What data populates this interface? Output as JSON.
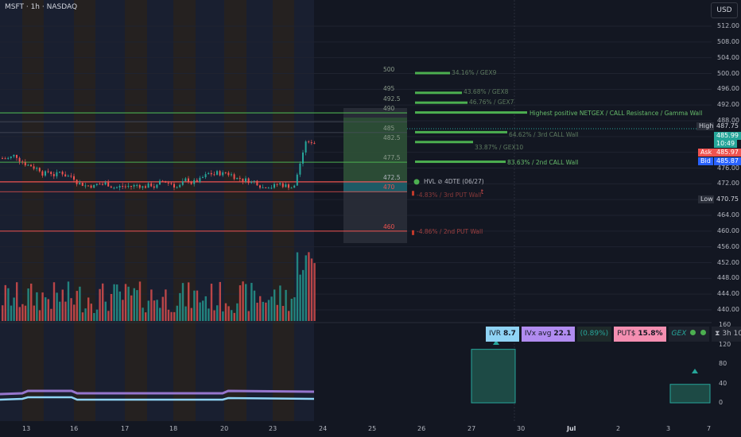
{
  "header": {
    "symbol_line": "MSFT · 1h · NASDAQ"
  },
  "currency_button": "USD",
  "price_axis": {
    "ticks": [
      "512.00",
      "508.00",
      "504.00",
      "500.00",
      "496.00",
      "492.00",
      "488.00",
      "484.00",
      "480.00",
      "476.00",
      "472.00",
      "468.00",
      "464.00",
      "460.00",
      "456.00",
      "452.00",
      "448.00",
      "444.00",
      "440.00"
    ]
  },
  "price_labels": {
    "high_tag": "High",
    "high_value": "487.75",
    "last_value": "485.99",
    "last_countdown": "10:49",
    "ask_tag": "Ask",
    "ask_value": "485.97",
    "bid_tag": "Bid",
    "bid_value": "485.87",
    "low_tag": "Low",
    "low_value": "470.75"
  },
  "indicator_axis": {
    "ticks": [
      "160",
      "120",
      "80",
      "40",
      "0"
    ]
  },
  "time_axis": {
    "ticks": [
      "13",
      "16",
      "17",
      "18",
      "20",
      "23",
      "24",
      "25",
      "26",
      "27",
      "30",
      "Jul",
      "2",
      "3",
      "7"
    ]
  },
  "strikes": [
    "500",
    "495",
    "492.5",
    "490",
    "485",
    "482.5",
    "477.5",
    "472.5",
    "470",
    "460"
  ],
  "gex_labels": [
    {
      "text": "34.16% / GEX9"
    },
    {
      "text": "43.68% / GEX8"
    },
    {
      "text": "46.76% / GEX7"
    },
    {
      "text": "Highest positive NETGEX / CALL Resistance / Gamma Wall"
    },
    {
      "text": "64.62% / 3rd CALL Wall"
    },
    {
      "text": "33.87% / GEX10"
    },
    {
      "text": "83.63% / 2nd CALL Wall"
    },
    {
      "text": "HVL ⊘ 4DTE (06/27)"
    },
    {
      "text": "-4.83% / 3rd PUT Wall"
    },
    {
      "text": "-4.86% / 2nd PUT Wall"
    }
  ],
  "hvl_marker": "t",
  "stats": {
    "ivr_label": "IVR",
    "ivr_value": "8.7",
    "ivx_label": "IVx avg",
    "ivx_value": "22.1",
    "change": "(0.89%)",
    "puts_label": "PUT$",
    "puts_value": "15.8%",
    "gex_label": "GEX",
    "timer_icon_char": "⧗",
    "timer": "3h 10m"
  },
  "colors": {
    "background": "#131722",
    "bull": "#26a69a",
    "bear": "#ef5350",
    "gex_green": "#4caf50",
    "put_red": "#c0392b",
    "ivr_bg": "#8fd3f4",
    "ivx_bg": "#b18cf0",
    "puts_bg": "#f48fb1"
  }
}
